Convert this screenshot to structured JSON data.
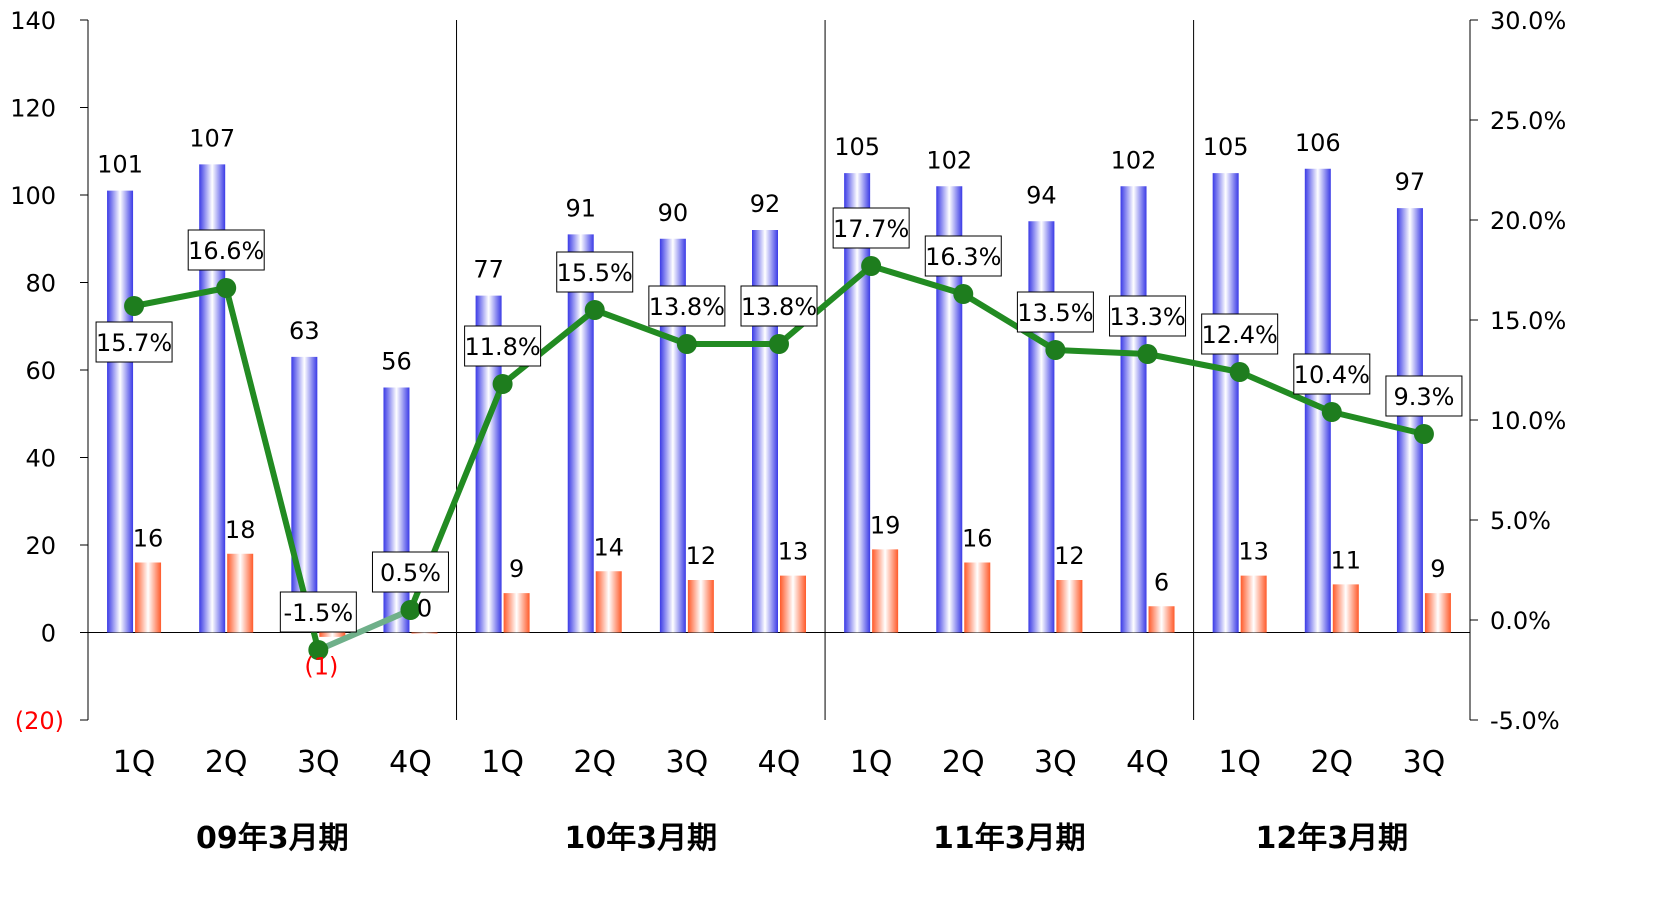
{
  "chart_data": {
    "type": "bar",
    "groups": [
      "09年3月期",
      "10年3月期",
      "11年3月期",
      "12年3月期"
    ],
    "categories": [
      {
        "label": "1Q",
        "group": 0
      },
      {
        "label": "2Q",
        "group": 0
      },
      {
        "label": "3Q",
        "group": 0
      },
      {
        "label": "4Q",
        "group": 0
      },
      {
        "label": "1Q",
        "group": 1
      },
      {
        "label": "2Q",
        "group": 1
      },
      {
        "label": "3Q",
        "group": 1
      },
      {
        "label": "4Q",
        "group": 1
      },
      {
        "label": "1Q",
        "group": 2
      },
      {
        "label": "2Q",
        "group": 2
      },
      {
        "label": "3Q",
        "group": 2
      },
      {
        "label": "4Q",
        "group": 2
      },
      {
        "label": "1Q",
        "group": 3
      },
      {
        "label": "2Q",
        "group": 3
      },
      {
        "label": "3Q",
        "group": 3
      }
    ],
    "series": [
      {
        "kind": "bar",
        "axis": "left",
        "color": "#3333ff",
        "values": [
          101,
          107,
          63,
          56,
          77,
          91,
          90,
          92,
          105,
          102,
          94,
          102,
          105,
          106,
          97
        ],
        "labels": [
          "101",
          "107",
          "63",
          "56",
          "77",
          "91",
          "90",
          "92",
          "105",
          "102",
          "94",
          "102",
          "105",
          "106",
          "97"
        ]
      },
      {
        "kind": "bar",
        "axis": "left",
        "color": "#ff6633",
        "values": [
          16,
          18,
          -1,
          0,
          9,
          14,
          12,
          13,
          19,
          16,
          12,
          6,
          13,
          11,
          9
        ],
        "labels": [
          "16",
          "18",
          "(1)",
          "0",
          "9",
          "14",
          "12",
          "13",
          "19",
          "16",
          "12",
          "6",
          "13",
          "11",
          "9"
        ]
      },
      {
        "kind": "line",
        "axis": "right",
        "color": "#228b22",
        "values": [
          15.7,
          16.6,
          -1.5,
          0.5,
          11.8,
          15.5,
          13.8,
          13.8,
          17.7,
          16.3,
          13.5,
          13.3,
          12.4,
          10.4,
          9.3
        ],
        "labels": [
          "15.7%",
          "16.6%",
          "-1.5%",
          "0.5%",
          "11.8%",
          "15.5%",
          "13.8%",
          "13.8%",
          "17.7%",
          "16.3%",
          "13.5%",
          "13.3%",
          "12.4%",
          "10.4%",
          "9.3%"
        ]
      }
    ],
    "y_left": {
      "range": [
        -20,
        140
      ],
      "ticks": [
        140,
        120,
        100,
        80,
        60,
        40,
        20,
        0,
        -20
      ],
      "tick_labels": [
        "140",
        "120",
        "100",
        "80",
        "60",
        "40",
        "20",
        "0",
        "(20)"
      ]
    },
    "y_right": {
      "range": [
        -5,
        30
      ],
      "ticks": [
        30,
        25,
        20,
        15,
        10,
        5,
        0,
        -5
      ],
      "tick_labels": [
        "30.0%",
        "25.0%",
        "20.0%",
        "15.0%",
        "10.0%",
        "5.0%",
        "0.0%",
        "-5.0%"
      ]
    },
    "title": "",
    "xlabel": "",
    "ylabel": "",
    "grid": false,
    "legend": "none"
  }
}
